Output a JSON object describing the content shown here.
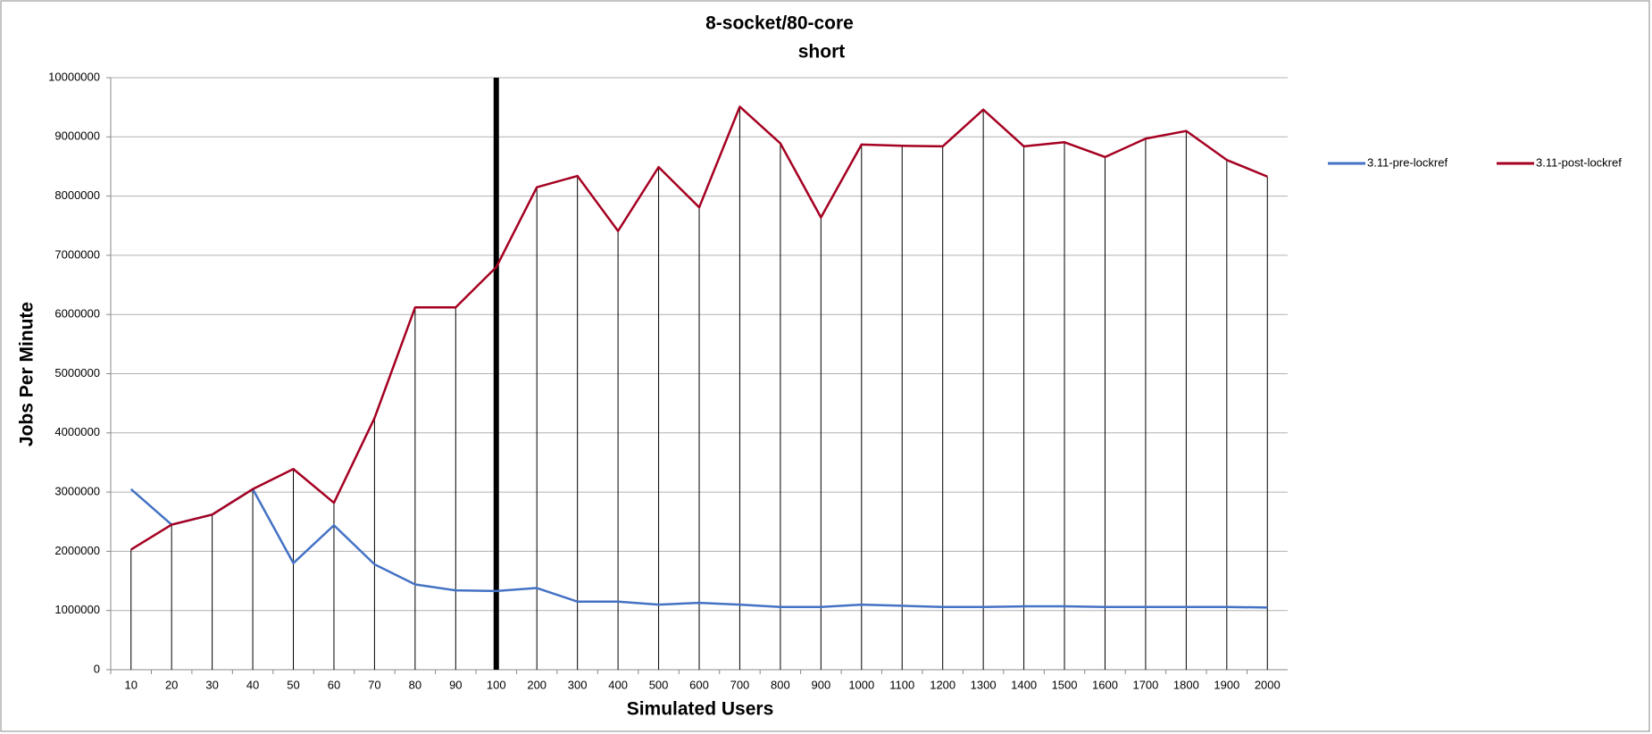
{
  "chart_data": {
    "type": "line",
    "title": "8-socket/80-core",
    "subtitle": "short",
    "x_label": "Simulated Users",
    "y_label": "Jobs Per Minute",
    "categories": [
      "10",
      "20",
      "30",
      "40",
      "50",
      "60",
      "70",
      "80",
      "90",
      "100",
      "200",
      "300",
      "400",
      "500",
      "600",
      "700",
      "800",
      "900",
      "1000",
      "1100",
      "1200",
      "1300",
      "1400",
      "1500",
      "1600",
      "1700",
      "1800",
      "1900",
      "2000"
    ],
    "series": [
      {
        "name": "3.11-pre-lockref",
        "color": "#4472c4",
        "values": [
          3050000,
          2450000,
          2620000,
          3050000,
          1800000,
          2440000,
          1780000,
          1440000,
          1340000,
          1330000,
          1380000,
          1150000,
          1150000,
          1100000,
          1130000,
          1100000,
          1060000,
          1060000,
          1100000,
          1080000,
          1060000,
          1060000,
          1070000,
          1070000,
          1060000,
          1060000,
          1060000,
          1060000,
          1050000
        ]
      },
      {
        "name": "3.11-post-lockref",
        "color": "#a50021",
        "values": [
          2030000,
          2450000,
          2620000,
          3050000,
          3390000,
          2820000,
          4250000,
          6120000,
          6120000,
          6800000,
          8150000,
          8340000,
          7410000,
          8490000,
          7810000,
          9510000,
          8890000,
          7640000,
          8870000,
          8850000,
          8840000,
          9460000,
          8840000,
          8910000,
          8660000,
          8970000,
          9100000,
          8610000,
          8330000
        ]
      }
    ],
    "ylim": [
      0,
      10000000
    ],
    "yticks": [
      0,
      1000000,
      2000000,
      3000000,
      4000000,
      5000000,
      6000000,
      7000000,
      8000000,
      9000000,
      10000000
    ],
    "grid": true,
    "drop_lines": true,
    "reference_line": {
      "x": "100",
      "color": "#000000"
    },
    "legend": "right"
  }
}
